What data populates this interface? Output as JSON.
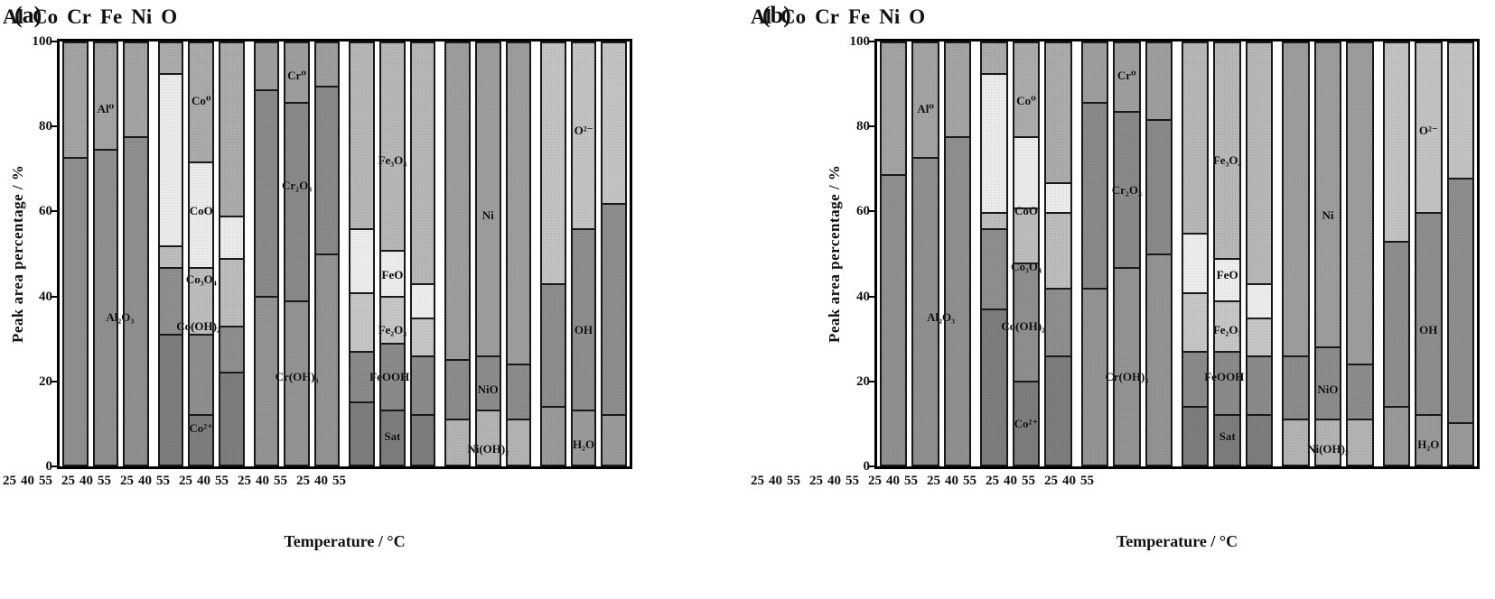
{
  "figure": {
    "y_axis_label": "Peak area percentage / %",
    "x_axis_label": "Temperature / °C",
    "y_ticks": [
      0,
      20,
      40,
      60,
      80,
      100
    ],
    "temps": [
      "25",
      "40",
      "55"
    ],
    "elements": [
      "Al",
      "Co",
      "Cr",
      "Fe",
      "Ni",
      "O"
    ],
    "panels": [
      {
        "tag": "(a)"
      },
      {
        "tag": "(b)"
      }
    ]
  },
  "colors": {
    "Al₂O₃": "#8f8f8f",
    "Al⁰": "#a3a3a3",
    "Co²⁺": "#7d7d7d",
    "Co(OH)₂": "#8e8e8e",
    "Co₃O₄": "#bdbdbd",
    "CoO": "#ebebeb",
    "Co⁰": "#ababab",
    "Cr(OH)₃": "#939393",
    "Cr₂O₃": "#898989",
    "Cr⁰": "#9e9e9e",
    "Sat": "#7d7d7d",
    "FeOOH": "#8a8a8a",
    "Fe₂O₃": "#c6c6c6",
    "FeO": "#ededed",
    "Fe₃O₄": "#b7b7b7",
    "Ni(OH)₂": "#b3b3b3",
    "NiO": "#8c8c8c",
    "Ni": "#9d9d9d",
    "H₂O": "#9a9a9a",
    "OH": "#8d8d8d",
    "O²⁻": "#c3c3c3"
  },
  "chart_data": [
    {
      "panel": "(a)",
      "type": "bar",
      "stacked": true,
      "ylim": [
        0,
        100
      ],
      "ylabel": "Peak area percentage / %",
      "xlabel": "Temperature / °C",
      "x_categories_per_group": [
        25,
        40,
        55
      ],
      "groups": [
        {
          "element": "Al",
          "species": [
            {
              "name": "Al₂O₃",
              "values": [
                73,
                75,
                78
              ]
            },
            {
              "name": "Al⁰",
              "values": [
                27,
                25,
                22
              ]
            }
          ],
          "labels": [
            {
              "text": "Al⁰",
              "anchor": 1,
              "y": 84
            },
            {
              "text": "Al₂O₃",
              "anchor": 1.5,
              "y": 35
            }
          ]
        },
        {
          "element": "Co",
          "species": [
            {
              "name": "Co²⁺",
              "values": [
                31,
                12,
                22
              ]
            },
            {
              "name": "Co(OH)₂",
              "values": [
                16,
                19,
                11
              ]
            },
            {
              "name": "Co₃O₄",
              "values": [
                5,
                16,
                16
              ]
            },
            {
              "name": "CoO",
              "values": [
                41,
                25,
                10
              ]
            },
            {
              "name": "Co⁰",
              "values": [
                7,
                28,
                41
              ]
            }
          ],
          "labels": [
            {
              "text": "Co⁰",
              "anchor": 1,
              "y": 86
            },
            {
              "text": "CoO",
              "anchor": 1,
              "y": 60
            },
            {
              "text": "Co₃O₄",
              "anchor": 1,
              "y": 44
            },
            {
              "text": "Co(OH)₂",
              "anchor": 0.9,
              "y": 33
            },
            {
              "text": "Co²⁺",
              "anchor": 1,
              "y": 9
            }
          ]
        },
        {
          "element": "Cr",
          "species": [
            {
              "name": "Cr(OH)₃",
              "values": [
                40,
                39,
                50
              ]
            },
            {
              "name": "Cr₂O₃",
              "values": [
                49,
                47,
                40
              ]
            },
            {
              "name": "Cr⁰",
              "values": [
                11,
                14,
                10
              ]
            }
          ],
          "labels": [
            {
              "text": "Cr⁰",
              "anchor": 1,
              "y": 92
            },
            {
              "text": "Cr₂O₃",
              "anchor": 1,
              "y": 66
            },
            {
              "text": "Cr(OH)₃",
              "anchor": 1,
              "y": 21
            }
          ]
        },
        {
          "element": "Fe",
          "species": [
            {
              "name": "Sat",
              "values": [
                15,
                13,
                12
              ]
            },
            {
              "name": "FeOOH",
              "values": [
                12,
                16,
                14
              ]
            },
            {
              "name": "Fe₂O₃",
              "values": [
                14,
                11,
                9
              ]
            },
            {
              "name": "FeO",
              "values": [
                15,
                11,
                8
              ]
            },
            {
              "name": "Fe₃O₄",
              "values": [
                44,
                49,
                57
              ]
            }
          ],
          "labels": [
            {
              "text": "Fe₃O₄",
              "anchor": 1,
              "y": 72
            },
            {
              "text": "FeO",
              "anchor": 1,
              "y": 45
            },
            {
              "text": "Fe₂O₃",
              "anchor": 1,
              "y": 32
            },
            {
              "text": "FeOOH",
              "anchor": 0.9,
              "y": 21
            },
            {
              "text": "Sat",
              "anchor": 1,
              "y": 7
            }
          ]
        },
        {
          "element": "Ni",
          "species": [
            {
              "name": "Ni(OH)₂",
              "values": [
                11,
                13,
                11
              ]
            },
            {
              "name": "NiO",
              "values": [
                14,
                13,
                13
              ]
            },
            {
              "name": "Ni",
              "values": [
                75,
                74,
                76
              ]
            }
          ],
          "labels": [
            {
              "text": "Ni",
              "anchor": 1,
              "y": 59
            },
            {
              "text": "NiO",
              "anchor": 1,
              "y": 18
            },
            {
              "text": "Ni(OH)₂",
              "anchor": 1,
              "y": 4
            }
          ]
        },
        {
          "element": "O",
          "species": [
            {
              "name": "H₂O",
              "values": [
                14,
                13,
                12
              ]
            },
            {
              "name": "OH",
              "values": [
                29,
                43,
                50
              ]
            },
            {
              "name": "O²⁻",
              "values": [
                57,
                44,
                38
              ]
            }
          ],
          "labels": [
            {
              "text": "O²⁻",
              "anchor": 1,
              "y": 79
            },
            {
              "text": "OH",
              "anchor": 1,
              "y": 32
            },
            {
              "text": "H₂O",
              "anchor": 1,
              "y": 5
            }
          ]
        }
      ]
    },
    {
      "panel": "(b)",
      "type": "bar",
      "stacked": true,
      "ylim": [
        0,
        100
      ],
      "ylabel": "Peak area percentage / %",
      "xlabel": "Temperature / °C",
      "x_categories_per_group": [
        25,
        40,
        55
      ],
      "groups": [
        {
          "element": "Al",
          "species": [
            {
              "name": "Al₂O₃",
              "values": [
                69,
                73,
                78
              ]
            },
            {
              "name": "Al⁰",
              "values": [
                31,
                27,
                22
              ]
            }
          ],
          "labels": [
            {
              "text": "Al⁰",
              "anchor": 1,
              "y": 84
            },
            {
              "text": "Al₂O₃",
              "anchor": 1.5,
              "y": 35
            }
          ]
        },
        {
          "element": "Co",
          "species": [
            {
              "name": "Co²⁺",
              "values": [
                37,
                20,
                26
              ]
            },
            {
              "name": "Co(OH)₂",
              "values": [
                19,
                28,
                16
              ]
            },
            {
              "name": "Co₃O₄",
              "values": [
                4,
                13,
                18
              ]
            },
            {
              "name": "CoO",
              "values": [
                33,
                17,
                7
              ]
            },
            {
              "name": "Co⁰",
              "values": [
                7,
                22,
                33
              ]
            }
          ],
          "labels": [
            {
              "text": "Co⁰",
              "anchor": 1,
              "y": 86
            },
            {
              "text": "CoO",
              "anchor": 1,
              "y": 60
            },
            {
              "text": "Co₃O₄",
              "anchor": 1,
              "y": 47
            },
            {
              "text": "Co(OH)₂",
              "anchor": 0.9,
              "y": 33
            },
            {
              "text": "Co²⁺",
              "anchor": 1,
              "y": 10
            }
          ]
        },
        {
          "element": "Cr",
          "species": [
            {
              "name": "Cr(OH)₃",
              "values": [
                42,
                47,
                50
              ]
            },
            {
              "name": "Cr₂O₃",
              "values": [
                44,
                37,
                32
              ]
            },
            {
              "name": "Cr⁰",
              "values": [
                14,
                16,
                18
              ]
            }
          ],
          "labels": [
            {
              "text": "Cr⁰",
              "anchor": 1,
              "y": 92
            },
            {
              "text": "Cr₂O₃",
              "anchor": 1,
              "y": 65
            },
            {
              "text": "Cr(OH)₃",
              "anchor": 1,
              "y": 21
            }
          ]
        },
        {
          "element": "Fe",
          "species": [
            {
              "name": "Sat",
              "values": [
                14,
                12,
                12
              ]
            },
            {
              "name": "FeOOH",
              "values": [
                13,
                15,
                14
              ]
            },
            {
              "name": "Fe₂O₃",
              "values": [
                14,
                12,
                9
              ]
            },
            {
              "name": "FeO",
              "values": [
                14,
                10,
                8
              ]
            },
            {
              "name": "Fe₃O₄",
              "values": [
                45,
                51,
                57
              ]
            }
          ],
          "labels": [
            {
              "text": "Fe₃O₄",
              "anchor": 1,
              "y": 72
            },
            {
              "text": "FeO",
              "anchor": 1,
              "y": 45
            },
            {
              "text": "Fe₂O₃",
              "anchor": 1,
              "y": 32
            },
            {
              "text": "FeOOH",
              "anchor": 0.9,
              "y": 21
            },
            {
              "text": "Sat",
              "anchor": 1,
              "y": 7
            }
          ]
        },
        {
          "element": "Ni",
          "species": [
            {
              "name": "Ni(OH)₂",
              "values": [
                11,
                11,
                11
              ]
            },
            {
              "name": "NiO",
              "values": [
                15,
                17,
                13
              ]
            },
            {
              "name": "Ni",
              "values": [
                74,
                72,
                76
              ]
            }
          ],
          "labels": [
            {
              "text": "Ni",
              "anchor": 1,
              "y": 59
            },
            {
              "text": "NiO",
              "anchor": 1,
              "y": 18
            },
            {
              "text": "Ni(OH)₂",
              "anchor": 1,
              "y": 4
            }
          ]
        },
        {
          "element": "O",
          "species": [
            {
              "name": "H₂O",
              "values": [
                14,
                12,
                10
              ]
            },
            {
              "name": "OH",
              "values": [
                39,
                48,
                58
              ]
            },
            {
              "name": "O²⁻",
              "values": [
                47,
                40,
                32
              ]
            }
          ],
          "labels": [
            {
              "text": "O²⁻",
              "anchor": 1,
              "y": 79
            },
            {
              "text": "OH",
              "anchor": 1,
              "y": 32
            },
            {
              "text": "H₂O",
              "anchor": 1,
              "y": 5
            }
          ]
        }
      ]
    }
  ]
}
